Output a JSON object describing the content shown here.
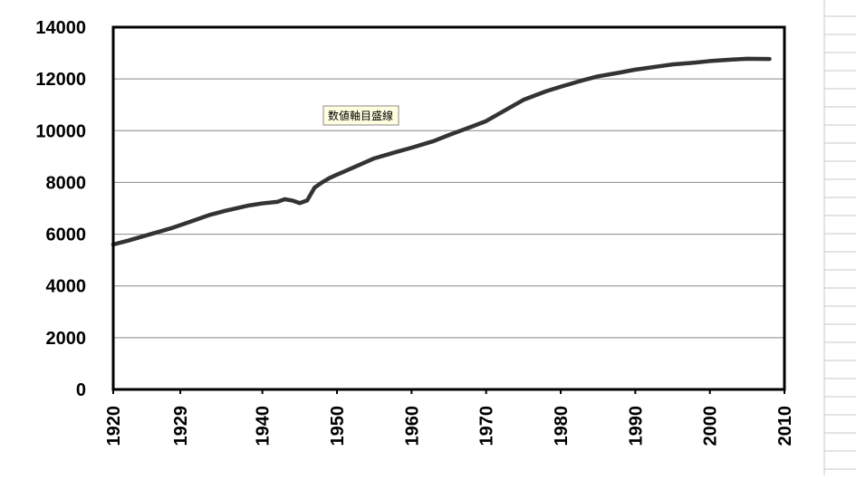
{
  "chart_data": {
    "type": "line",
    "annotation": "数値軸目盛線",
    "x": [
      1920,
      1922,
      1925,
      1928,
      1930,
      1933,
      1935,
      1938,
      1940,
      1942,
      1943,
      1944,
      1945,
      1946,
      1947,
      1948,
      1949,
      1950,
      1952,
      1955,
      1958,
      1960,
      1963,
      1965,
      1968,
      1970,
      1972,
      1975,
      1978,
      1980,
      1983,
      1985,
      1988,
      1990,
      1993,
      1995,
      1998,
      2000,
      2003,
      2005,
      2008
    ],
    "series": [
      {
        "color": "#333333",
        "values": [
          5600,
          5750,
          6000,
          6250,
          6450,
          6750,
          6900,
          7100,
          7190,
          7250,
          7350,
          7300,
          7200,
          7300,
          7800,
          8000,
          8170,
          8300,
          8550,
          8930,
          9180,
          9340,
          9600,
          9830,
          10150,
          10370,
          10700,
          11190,
          11520,
          11700,
          11950,
          12100,
          12250,
          12360,
          12480,
          12560,
          12630,
          12690,
          12750,
          12780,
          12770
        ]
      }
    ],
    "xlim": [
      1920,
      2010
    ],
    "xticks": [
      1920,
      1929,
      1940,
      1950,
      1960,
      1970,
      1980,
      1990,
      2000,
      2010
    ],
    "ylim": [
      0,
      14000
    ],
    "yticks": [
      0,
      2000,
      4000,
      6000,
      8000,
      10000,
      12000,
      14000
    ],
    "grid": true
  }
}
